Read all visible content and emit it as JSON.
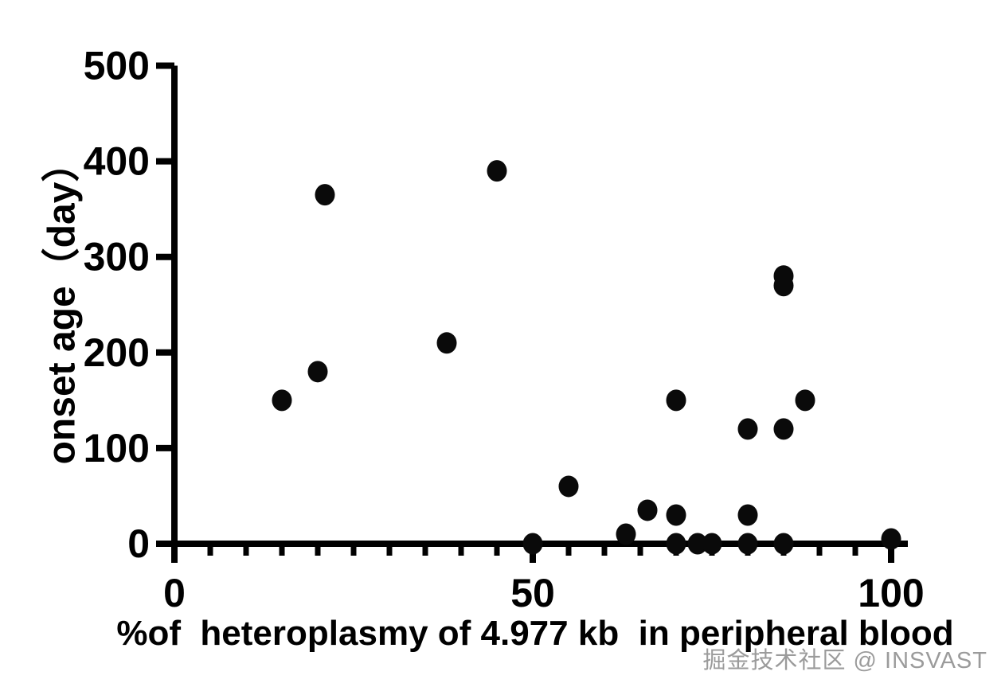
{
  "chart_data": {
    "type": "scatter",
    "title": "",
    "xlabel": "%of  heteroplasmy of 4.977 kb  in peripheral blood",
    "ylabel": "onset age（day）",
    "xlim": [
      0,
      100
    ],
    "ylim": [
      0,
      500
    ],
    "x_ticks": [
      0,
      50,
      100
    ],
    "x_minor_tick_step": 5,
    "y_ticks": [
      0,
      100,
      200,
      300,
      400,
      500
    ],
    "grid": false,
    "legend": false,
    "marker": {
      "shape": "circle",
      "color": "#0a0a0a",
      "radius_px": 13
    },
    "axis_color": "#000000",
    "background": "#ffffff",
    "points": [
      {
        "x": 15,
        "y": 150
      },
      {
        "x": 20,
        "y": 180
      },
      {
        "x": 21,
        "y": 365
      },
      {
        "x": 38,
        "y": 210
      },
      {
        "x": 45,
        "y": 390
      },
      {
        "x": 50,
        "y": 0
      },
      {
        "x": 55,
        "y": 60
      },
      {
        "x": 63,
        "y": 10
      },
      {
        "x": 66,
        "y": 35
      },
      {
        "x": 70,
        "y": 0
      },
      {
        "x": 70,
        "y": 30
      },
      {
        "x": 70,
        "y": 150
      },
      {
        "x": 73,
        "y": 0
      },
      {
        "x": 75,
        "y": 0
      },
      {
        "x": 80,
        "y": 0
      },
      {
        "x": 80,
        "y": 30
      },
      {
        "x": 80,
        "y": 120
      },
      {
        "x": 85,
        "y": 0
      },
      {
        "x": 85,
        "y": 120
      },
      {
        "x": 85,
        "y": 270
      },
      {
        "x": 85,
        "y": 280
      },
      {
        "x": 88,
        "y": 150
      },
      {
        "x": 100,
        "y": 5
      }
    ]
  },
  "watermark": {
    "text": "掘金技术社区 @ INSVAST",
    "color": "#9b9b9b"
  }
}
